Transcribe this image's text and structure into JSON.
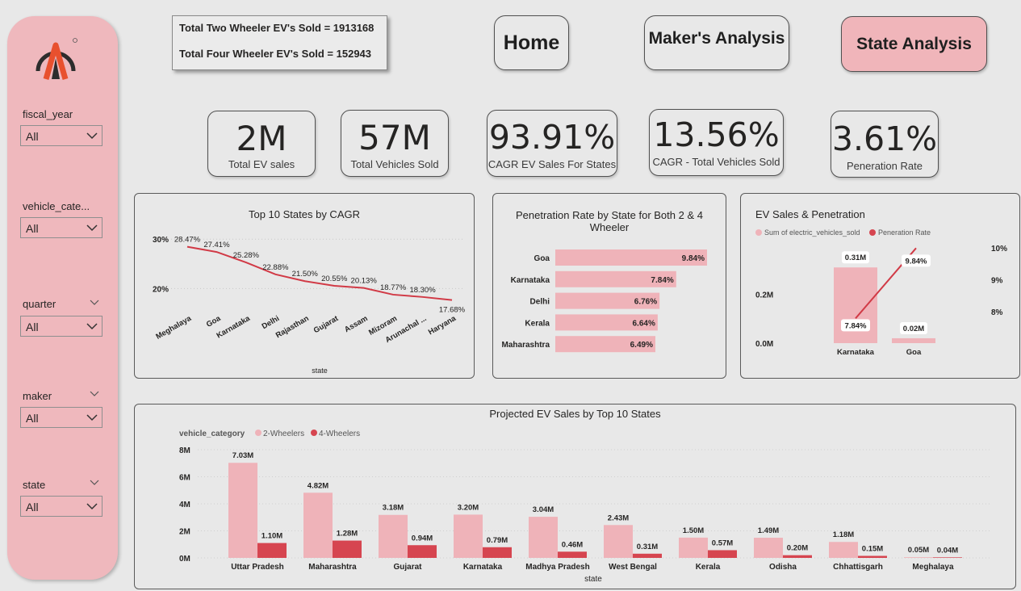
{
  "colors": {
    "accent": "#f0b5ba",
    "series_light": "#efb3b9",
    "series_dark": "#d64550",
    "line": "#d13a46"
  },
  "sidebar": {
    "logo_icon": "logo-icon",
    "slicers": [
      {
        "label": "fiscal_year",
        "value": "All"
      },
      {
        "label": "vehicle_cate...",
        "value": "All"
      },
      {
        "label": "quarter",
        "value": "All"
      },
      {
        "label": "maker",
        "value": "All"
      },
      {
        "label": "state",
        "value": "All"
      }
    ]
  },
  "totals": {
    "two_wheeler": "Total Two Wheeler EV's Sold = 1913168",
    "four_wheeler": "Total Four Wheeler EV's Sold = 152943"
  },
  "nav": {
    "home": "Home",
    "makers": "Maker's Analysis",
    "state": "State Analysis"
  },
  "kpis": [
    {
      "value": "2M",
      "label": "Total EV sales"
    },
    {
      "value": "57M",
      "label": "Total Vehicles Sold"
    },
    {
      "value": "93.91%",
      "label": "CAGR EV Sales For States"
    },
    {
      "value": "13.56%",
      "label": "CAGR - Total Vehicles Sold"
    },
    {
      "value": "3.61%",
      "label": "Peneration Rate"
    }
  ],
  "chart_data": [
    {
      "type": "line",
      "title": "Top 10 States by CAGR",
      "xlabel": "state",
      "ylabel": "",
      "categories": [
        "Meghalaya",
        "Goa",
        "Karnataka",
        "Delhi",
        "Rajasthan",
        "Gujarat",
        "Assam",
        "Mizoram",
        "Arunachal ...",
        "Haryana"
      ],
      "values": [
        28.47,
        27.41,
        25.28,
        22.88,
        21.5,
        20.55,
        20.13,
        18.77,
        18.3,
        17.68
      ],
      "data_labels": [
        "28.47%",
        "27.41%",
        "25.28%",
        "22.88%",
        "21.50%",
        "20.55%",
        "20.13%",
        "18.77%",
        "18.30%",
        "17.68%"
      ],
      "y_ticks": [
        "30%",
        "20%"
      ],
      "ylim": [
        15,
        32
      ],
      "grid": true
    },
    {
      "type": "bar",
      "orientation": "horizontal",
      "title": "Penetration Rate by State for Both 2 & 4 Wheeler",
      "categories": [
        "Goa",
        "Karnataka",
        "Delhi",
        "Kerala",
        "Maharashtra"
      ],
      "values": [
        9.84,
        7.84,
        6.76,
        6.64,
        6.49
      ],
      "data_labels": [
        "9.84%",
        "7.84%",
        "6.76%",
        "6.64%",
        "6.49%"
      ]
    },
    {
      "type": "bar",
      "combo": "bar+line",
      "title": "EV Sales & Penetration",
      "legend": [
        "Sum of electric_vehicles_sold",
        "Peneration Rate"
      ],
      "legend_position": "top-left",
      "categories": [
        "Karnataka",
        "Goa"
      ],
      "series": [
        {
          "name": "Sum of electric_vehicles_sold",
          "values": [
            0.31,
            0.02
          ],
          "data_labels": [
            "0.31M",
            "0.02M"
          ]
        },
        {
          "name": "Peneration Rate",
          "values": [
            7.84,
            9.84
          ],
          "data_labels": [
            "7.84%",
            "9.84%"
          ]
        }
      ],
      "y_ticks_left": [
        "0.2M",
        "0.0M"
      ],
      "y_ticks_right": [
        "10%",
        "9%",
        "8%"
      ]
    },
    {
      "type": "bar",
      "title": "Projected EV Sales by Top 10 States",
      "xlabel": "state",
      "legend_title": "vehicle_category",
      "legend_position": "top-left",
      "categories": [
        "Uttar Pradesh",
        "Maharashtra",
        "Gujarat",
        "Karnataka",
        "Madhya Pradesh",
        "West Bengal",
        "Kerala",
        "Odisha",
        "Chhattisgarh",
        "Meghalaya"
      ],
      "series": [
        {
          "name": "2-Wheelers",
          "values": [
            7.03,
            4.82,
            3.18,
            3.2,
            3.04,
            2.43,
            1.5,
            1.49,
            1.18,
            0.05
          ],
          "data_labels": [
            "7.03M",
            "4.82M",
            "3.18M",
            "3.20M",
            "3.04M",
            "2.43M",
            "1.50M",
            "1.49M",
            "1.18M",
            "0.05M"
          ]
        },
        {
          "name": "4-Wheelers",
          "values": [
            1.1,
            1.28,
            0.94,
            0.79,
            0.46,
            0.31,
            0.57,
            0.2,
            0.15,
            0.04
          ],
          "data_labels": [
            "1.10M",
            "1.28M",
            "0.94M",
            "0.79M",
            "0.46M",
            "0.31M",
            "0.57M",
            "0.20M",
            "0.15M",
            "0.04M"
          ]
        }
      ],
      "y_ticks": [
        "8M",
        "6M",
        "4M",
        "2M",
        "0M"
      ],
      "ylim": [
        0,
        8
      ],
      "grid": true
    }
  ]
}
